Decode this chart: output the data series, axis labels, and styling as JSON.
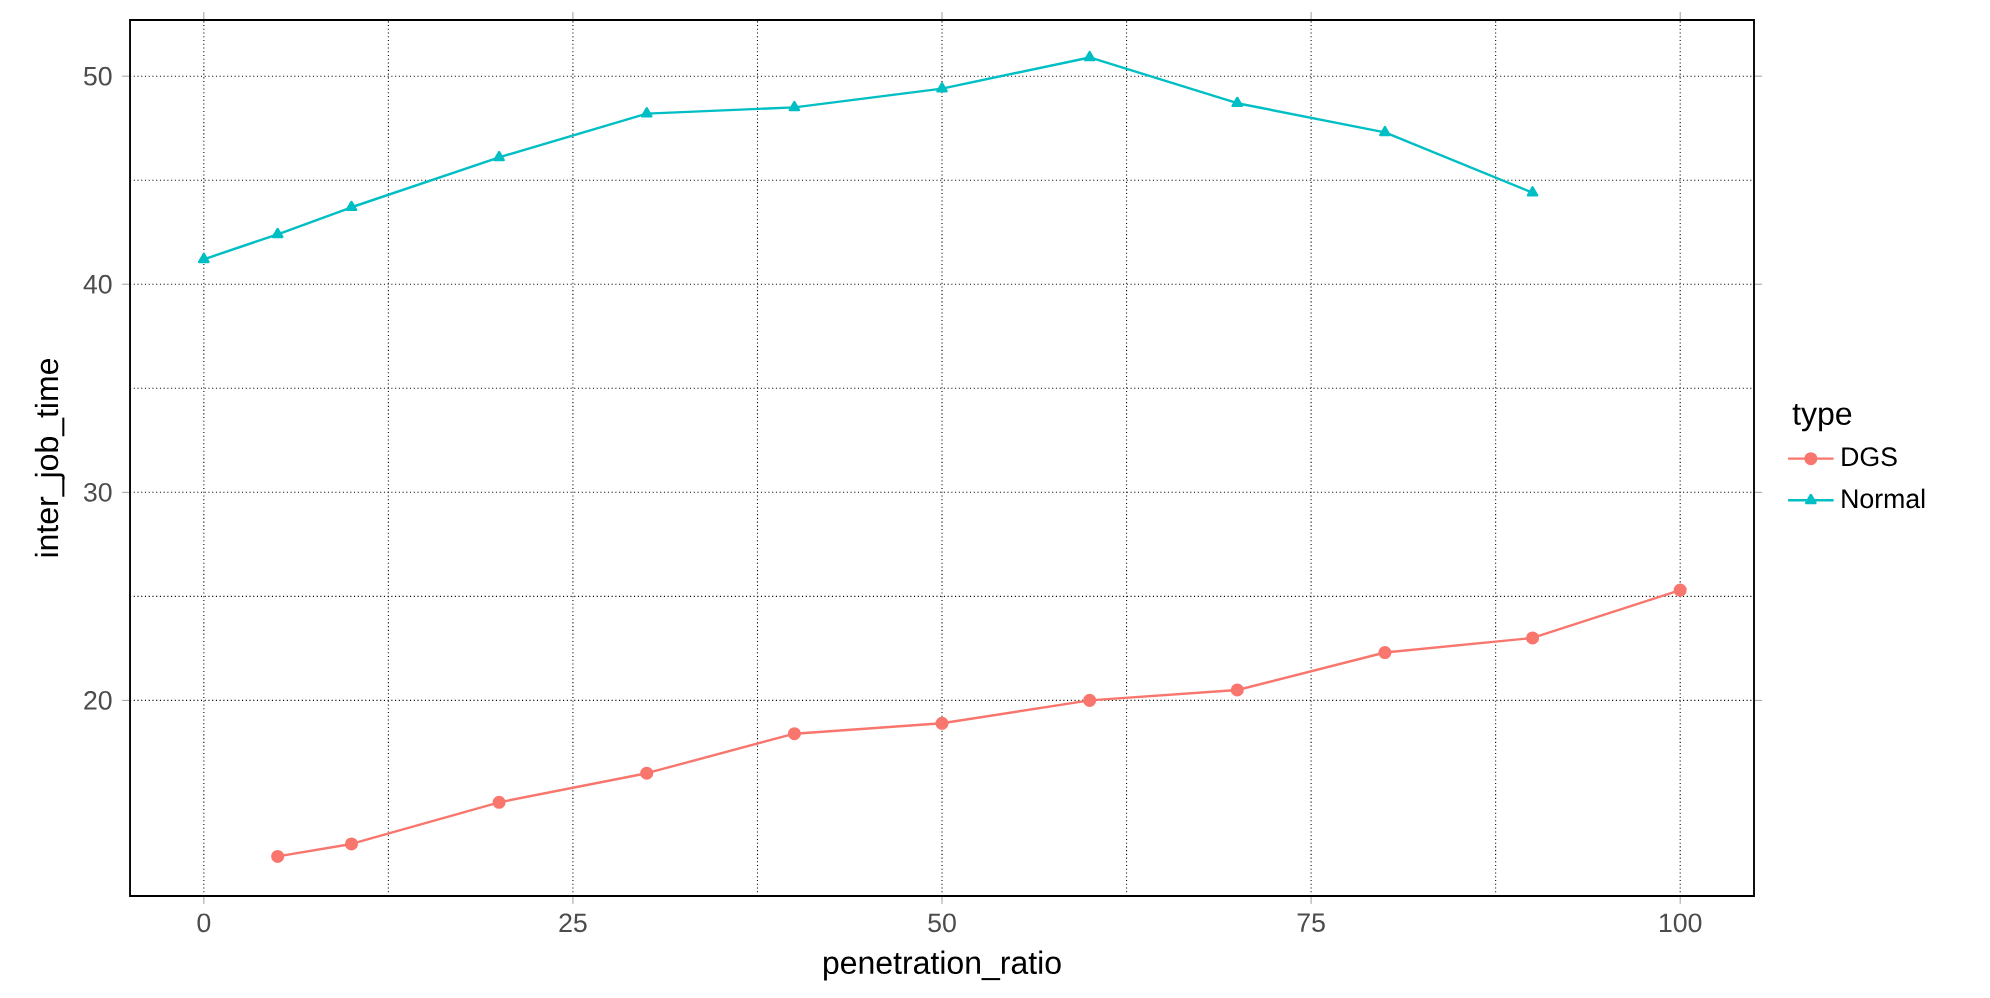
{
  "chart_data": {
    "type": "line",
    "xlabel": "penetration_ratio",
    "ylabel": "inter_job_time",
    "legend_title": "type",
    "xlim": [
      -5,
      105
    ],
    "ylim": [
      10.6,
      52.7
    ],
    "xticks": [
      0,
      25,
      50,
      75,
      100
    ],
    "yticks": [
      20,
      30,
      40,
      50
    ],
    "grid": true,
    "legend": "right",
    "line_style": "solid",
    "series": [
      {
        "name": "DGS",
        "color": "#f8766d",
        "marker": "circle",
        "x": [
          5,
          10,
          20,
          30,
          40,
          50,
          60,
          70,
          80,
          90,
          100
        ],
        "values": [
          12.5,
          13.1,
          15.1,
          16.5,
          18.4,
          18.9,
          20.0,
          20.5,
          22.3,
          23.0,
          25.3
        ]
      },
      {
        "name": "Normal",
        "color": "#00bfc4",
        "marker": "triangle",
        "x": [
          0,
          5,
          10,
          20,
          30,
          40,
          50,
          60,
          70,
          80,
          90
        ],
        "values": [
          41.2,
          42.4,
          43.7,
          46.1,
          48.2,
          48.5,
          49.4,
          50.9,
          48.7,
          47.3,
          44.4
        ]
      }
    ]
  }
}
